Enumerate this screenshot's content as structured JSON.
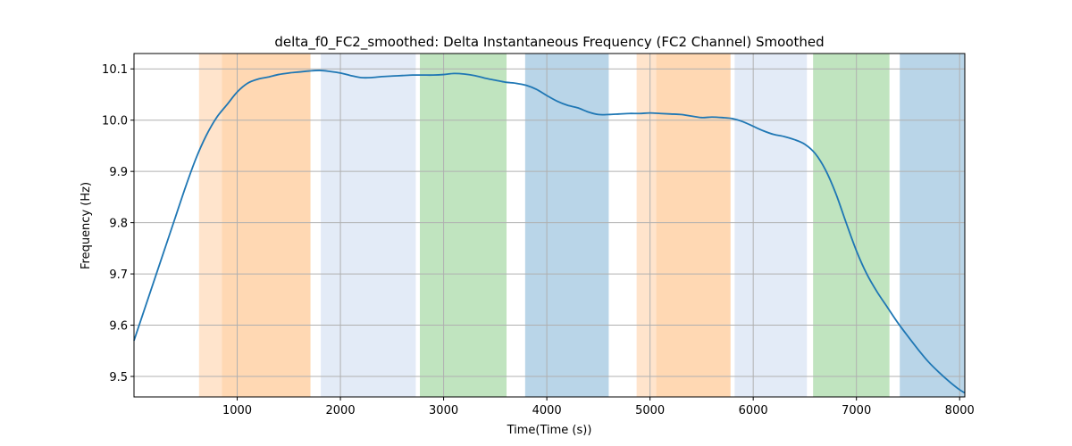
{
  "chart_data": {
    "type": "line",
    "title": "delta_f0_FC2_smoothed: Delta Instantaneous Frequency (FC2 Channel) Smoothed",
    "xlabel": "Time(Time (s))",
    "ylabel": "Frequency (Hz)",
    "xlim": [
      0,
      8050
    ],
    "ylim": [
      9.46,
      10.13
    ],
    "x_ticks": [
      1000,
      2000,
      3000,
      4000,
      5000,
      6000,
      7000,
      8000
    ],
    "x_tick_labels": [
      "1000",
      "2000",
      "3000",
      "4000",
      "5000",
      "6000",
      "7000",
      "8000"
    ],
    "y_ticks": [
      9.5,
      9.6,
      9.7,
      9.8,
      9.9,
      10.0,
      10.1
    ],
    "y_tick_labels": [
      "9.5",
      "9.6",
      "9.7",
      "9.8",
      "9.9",
      "10.0",
      "10.1"
    ],
    "grid": true,
    "series": [
      {
        "color": "#1f77b4",
        "x": [
          0,
          100,
          200,
          300,
          400,
          500,
          600,
          700,
          800,
          900,
          1000,
          1100,
          1200,
          1300,
          1400,
          1500,
          1600,
          1700,
          1800,
          1900,
          2000,
          2100,
          2200,
          2300,
          2400,
          2500,
          2600,
          2700,
          2800,
          2900,
          3000,
          3100,
          3200,
          3300,
          3400,
          3500,
          3600,
          3700,
          3800,
          3900,
          4000,
          4100,
          4200,
          4300,
          4400,
          4500,
          4600,
          4700,
          4800,
          4900,
          5000,
          5100,
          5200,
          5300,
          5400,
          5500,
          5600,
          5700,
          5800,
          5900,
          6000,
          6100,
          6200,
          6300,
          6400,
          6500,
          6600,
          6700,
          6800,
          6900,
          7000,
          7100,
          7200,
          7300,
          7400,
          7500,
          7600,
          7700,
          7800,
          7900,
          8000,
          8050
        ],
        "y": [
          9.57,
          9.63,
          9.69,
          9.75,
          9.81,
          9.87,
          9.925,
          9.97,
          10.005,
          10.03,
          10.055,
          10.072,
          10.08,
          10.084,
          10.089,
          10.092,
          10.094,
          10.096,
          10.097,
          10.095,
          10.092,
          10.087,
          10.083,
          10.083,
          10.085,
          10.086,
          10.087,
          10.088,
          10.088,
          10.088,
          10.089,
          10.091,
          10.09,
          10.087,
          10.082,
          10.078,
          10.074,
          10.072,
          10.068,
          10.06,
          10.048,
          10.037,
          10.029,
          10.024,
          10.016,
          10.011,
          10.011,
          10.012,
          10.013,
          10.013,
          10.014,
          10.013,
          10.012,
          10.011,
          10.008,
          10.005,
          10.006,
          10.005,
          10.003,
          9.997,
          9.988,
          9.979,
          9.972,
          9.968,
          9.962,
          9.953,
          9.935,
          9.903,
          9.857,
          9.8,
          9.745,
          9.7,
          9.665,
          9.635,
          9.605,
          9.578,
          9.552,
          9.528,
          9.508,
          9.49,
          9.474,
          9.468
        ]
      }
    ],
    "shaded_regions": [
      {
        "x0": 630,
        "x1": 850,
        "color": "#ffe4cc"
      },
      {
        "x0": 850,
        "x1": 1710,
        "color": "#ffd8b3"
      },
      {
        "x0": 1810,
        "x1": 2730,
        "color": "#e3ebf7"
      },
      {
        "x0": 2770,
        "x1": 3610,
        "color": "#c0e4bf"
      },
      {
        "x0": 3790,
        "x1": 4600,
        "color": "#b9d5e8"
      },
      {
        "x0": 4870,
        "x1": 5060,
        "color": "#ffe4cc"
      },
      {
        "x0": 5060,
        "x1": 5780,
        "color": "#ffd8b3"
      },
      {
        "x0": 5820,
        "x1": 6520,
        "color": "#e3ebf7"
      },
      {
        "x0": 6580,
        "x1": 7320,
        "color": "#c0e4bf"
      },
      {
        "x0": 7420,
        "x1": 8050,
        "color": "#b9d5e8"
      }
    ]
  }
}
